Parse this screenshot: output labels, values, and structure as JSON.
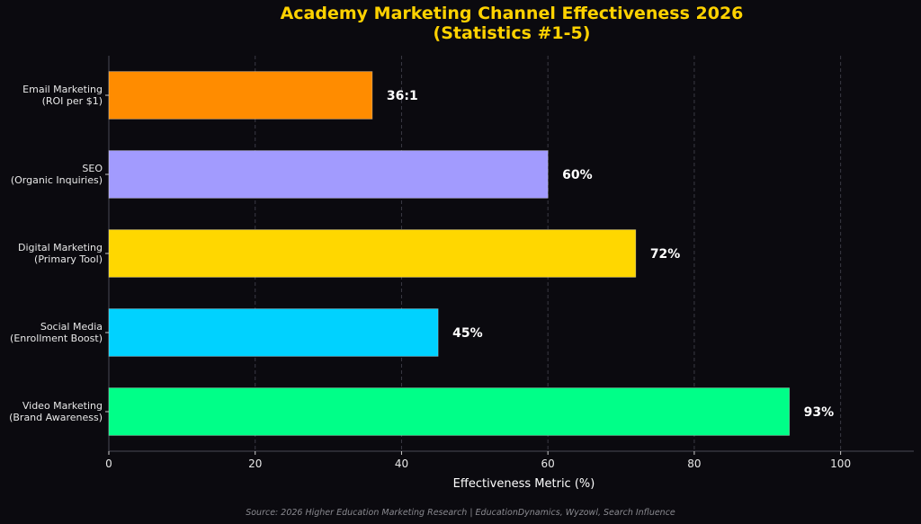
{
  "chart_data": {
    "type": "bar",
    "orientation": "horizontal",
    "title": [
      "Academy Marketing Channel Effectiveness 2026",
      "(Statistics #1-5)"
    ],
    "xlabel": "Effectiveness Metric (%)",
    "xlim": [
      0,
      110
    ],
    "xticks": [
      0,
      20,
      40,
      60,
      80,
      100
    ],
    "grid": "vertical-dashed",
    "categories": [
      [
        "Email Marketing",
        "(ROI per $1)"
      ],
      [
        "SEO",
        "(Organic Inquiries)"
      ],
      [
        "Digital Marketing",
        "(Primary Tool)"
      ],
      [
        "Social Media",
        "(Enrollment Boost)"
      ],
      [
        "Video Marketing",
        "(Brand Awareness)"
      ]
    ],
    "values": [
      36,
      60,
      72,
      45,
      93
    ],
    "value_labels": [
      "36:1",
      "60%",
      "72%",
      "45%",
      "93%"
    ],
    "colors": [
      "#ff8c00",
      "#a29bfe",
      "#ffd700",
      "#00d2ff",
      "#00ff88"
    ]
  },
  "footer": {
    "source": "Source: 2026 Higher Education Marketing Research | EducationDynamics, Wyzowl, Search Influence"
  }
}
